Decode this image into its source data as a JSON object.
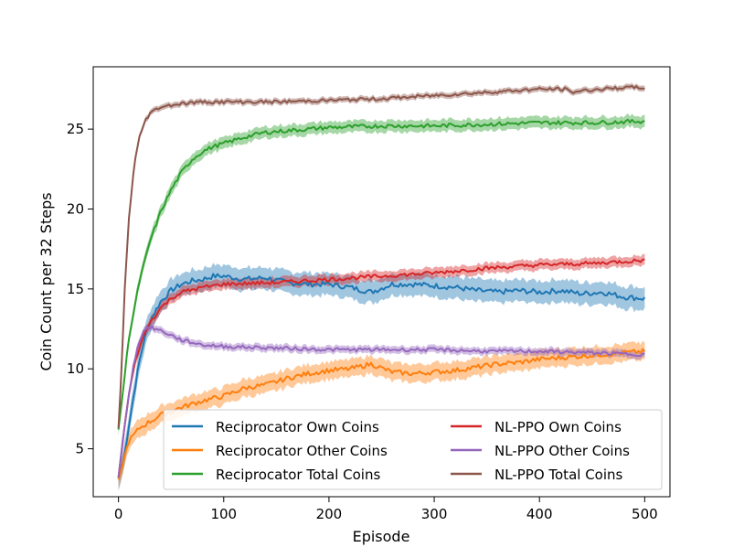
{
  "chart_data": {
    "type": "line",
    "title": "",
    "xlabel": "Episode",
    "ylabel": "Coin Count per 32 Steps",
    "xlim": [
      -24,
      524
    ],
    "ylim": [
      2.0,
      28.9
    ],
    "xticks": [
      0,
      100,
      200,
      300,
      400,
      500
    ],
    "yticks": [
      5,
      10,
      15,
      20,
      25
    ],
    "legend_position": "lower-right",
    "series": [
      {
        "name": "Reciprocator Own Coins",
        "color": "#1f77b4",
        "band": 0.75,
        "points": [
          [
            0,
            3.1
          ],
          [
            5,
            4.3
          ],
          [
            10,
            6.5
          ],
          [
            15,
            8.6
          ],
          [
            20,
            10.5
          ],
          [
            25,
            12.0
          ],
          [
            30,
            13.0
          ],
          [
            40,
            14.2
          ],
          [
            50,
            14.9
          ],
          [
            60,
            15.3
          ],
          [
            70,
            15.5
          ],
          [
            80,
            15.6
          ],
          [
            90,
            15.8
          ],
          [
            100,
            15.8
          ],
          [
            120,
            15.6
          ],
          [
            140,
            15.7
          ],
          [
            160,
            15.4
          ],
          [
            180,
            15.3
          ],
          [
            200,
            15.3
          ],
          [
            220,
            15.1
          ],
          [
            240,
            14.8
          ],
          [
            260,
            15.3
          ],
          [
            280,
            15.3
          ],
          [
            300,
            15.2
          ],
          [
            320,
            15.1
          ],
          [
            340,
            14.9
          ],
          [
            360,
            14.8
          ],
          [
            380,
            14.9
          ],
          [
            400,
            14.8
          ],
          [
            420,
            14.9
          ],
          [
            440,
            14.7
          ],
          [
            460,
            14.8
          ],
          [
            480,
            14.5
          ],
          [
            500,
            14.4
          ]
        ]
      },
      {
        "name": "Reciprocator Other Coins",
        "color": "#ff7f0e",
        "band": 0.6,
        "points": [
          [
            0,
            3.1
          ],
          [
            5,
            4.3
          ],
          [
            10,
            5.5
          ],
          [
            20,
            6.3
          ],
          [
            40,
            7.1
          ],
          [
            60,
            7.6
          ],
          [
            80,
            8.0
          ],
          [
            100,
            8.3
          ],
          [
            120,
            8.8
          ],
          [
            140,
            9.0
          ],
          [
            160,
            9.4
          ],
          [
            180,
            9.7
          ],
          [
            200,
            9.9
          ],
          [
            220,
            10.0
          ],
          [
            240,
            10.3
          ],
          [
            260,
            9.8
          ],
          [
            280,
            9.7
          ],
          [
            300,
            9.8
          ],
          [
            320,
            9.9
          ],
          [
            340,
            10.1
          ],
          [
            360,
            10.3
          ],
          [
            380,
            10.4
          ],
          [
            400,
            10.6
          ],
          [
            420,
            10.7
          ],
          [
            440,
            10.8
          ],
          [
            460,
            10.9
          ],
          [
            480,
            11.0
          ],
          [
            500,
            11.1
          ]
        ]
      },
      {
        "name": "Reciprocator Total Coins",
        "color": "#2ca02c",
        "band": 0.4,
        "points": [
          [
            0,
            6.2
          ],
          [
            5,
            9.0
          ],
          [
            10,
            12.0
          ],
          [
            20,
            15.5
          ],
          [
            30,
            18.0
          ],
          [
            40,
            19.8
          ],
          [
            50,
            21.2
          ],
          [
            60,
            22.3
          ],
          [
            70,
            23.1
          ],
          [
            80,
            23.6
          ],
          [
            90,
            23.9
          ],
          [
            100,
            24.1
          ],
          [
            120,
            24.5
          ],
          [
            140,
            24.8
          ],
          [
            160,
            24.9
          ],
          [
            180,
            25.0
          ],
          [
            200,
            25.1
          ],
          [
            250,
            25.2
          ],
          [
            300,
            25.2
          ],
          [
            350,
            25.3
          ],
          [
            400,
            25.4
          ],
          [
            450,
            25.4
          ],
          [
            500,
            25.5
          ]
        ]
      },
      {
        "name": "NL-PPO Own Coins",
        "color": "#d62728",
        "band": 0.35,
        "points": [
          [
            0,
            3.2
          ],
          [
            5,
            6.0
          ],
          [
            10,
            8.4
          ],
          [
            15,
            10.2
          ],
          [
            20,
            11.4
          ],
          [
            25,
            12.2
          ],
          [
            30,
            12.9
          ],
          [
            40,
            13.8
          ],
          [
            50,
            14.4
          ],
          [
            60,
            14.8
          ],
          [
            80,
            15.1
          ],
          [
            100,
            15.3
          ],
          [
            150,
            15.4
          ],
          [
            200,
            15.6
          ],
          [
            250,
            15.8
          ],
          [
            300,
            16.0
          ],
          [
            350,
            16.3
          ],
          [
            400,
            16.5
          ],
          [
            450,
            16.6
          ],
          [
            500,
            16.8
          ]
        ]
      },
      {
        "name": "NL-PPO Other Coins",
        "color": "#9467bd",
        "band": 0.25,
        "points": [
          [
            0,
            3.2
          ],
          [
            5,
            6.0
          ],
          [
            10,
            8.5
          ],
          [
            15,
            10.5
          ],
          [
            20,
            11.8
          ],
          [
            25,
            12.5
          ],
          [
            30,
            12.6
          ],
          [
            40,
            12.4
          ],
          [
            50,
            12.1
          ],
          [
            60,
            11.8
          ],
          [
            80,
            11.5
          ],
          [
            100,
            11.4
          ],
          [
            150,
            11.3
          ],
          [
            200,
            11.2
          ],
          [
            250,
            11.2
          ],
          [
            300,
            11.2
          ],
          [
            350,
            11.1
          ],
          [
            400,
            11.1
          ],
          [
            450,
            11.0
          ],
          [
            500,
            10.9
          ]
        ]
      },
      {
        "name": "NL-PPO Total Coins",
        "color": "#8c564b",
        "band": 0.2,
        "points": [
          [
            0,
            6.3
          ],
          [
            3,
            10.0
          ],
          [
            6,
            15.0
          ],
          [
            10,
            19.5
          ],
          [
            15,
            22.8
          ],
          [
            20,
            24.5
          ],
          [
            25,
            25.5
          ],
          [
            30,
            26.0
          ],
          [
            40,
            26.4
          ],
          [
            50,
            26.5
          ],
          [
            60,
            26.6
          ],
          [
            80,
            26.7
          ],
          [
            100,
            26.7
          ],
          [
            150,
            26.7
          ],
          [
            200,
            26.8
          ],
          [
            250,
            26.9
          ],
          [
            300,
            27.1
          ],
          [
            350,
            27.3
          ],
          [
            400,
            27.5
          ],
          [
            425,
            27.5
          ],
          [
            430,
            27.3
          ],
          [
            440,
            27.4
          ],
          [
            460,
            27.5
          ],
          [
            480,
            27.6
          ],
          [
            500,
            27.6
          ]
        ]
      }
    ]
  }
}
